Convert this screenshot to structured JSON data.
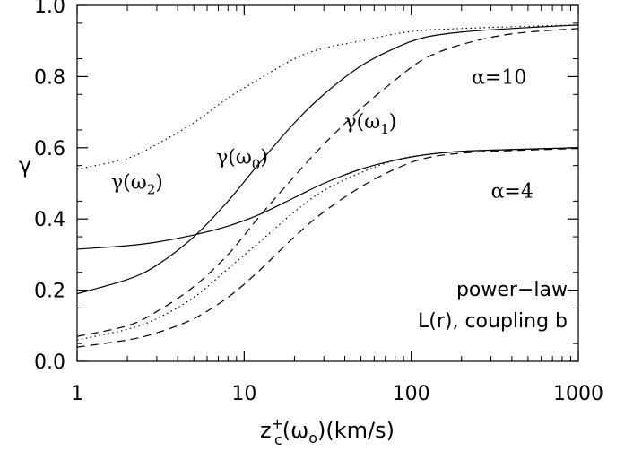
{
  "chart_data": {
    "type": "line",
    "xscale": "log",
    "xlim": [
      1,
      1000
    ],
    "ylim": [
      0.0,
      1.0
    ],
    "grid": false,
    "xticks": [
      1,
      10,
      100,
      1000
    ],
    "xtick_labels": [
      "1",
      "10",
      "100",
      "1000"
    ],
    "yticks": [
      0.0,
      0.2,
      0.4,
      0.6,
      0.8,
      1.0
    ],
    "ytick_labels": [
      "0.0",
      "0.2",
      "0.4",
      "0.6",
      "0.8",
      "1.0"
    ],
    "xlabel": {
      "base": "z",
      "sup": "+",
      "sub": "c",
      "rest_open": "(ω",
      "rest_sub": "o",
      "rest_close": ")(km/s)"
    },
    "ylabel": "γ",
    "series": [
      {
        "line_style": "solid",
        "group": "α=10",
        "x": [
          1,
          2,
          3,
          5,
          8,
          12,
          20,
          30,
          50,
          80,
          120,
          200,
          400,
          1000
        ],
        "y": [
          0.19,
          0.23,
          0.27,
          0.35,
          0.45,
          0.55,
          0.67,
          0.75,
          0.83,
          0.88,
          0.91,
          0.925,
          0.935,
          0.945
        ]
      },
      {
        "line_style": "dashed",
        "group": "α=10",
        "x": [
          1,
          2,
          3,
          5,
          8,
          12,
          20,
          30,
          50,
          80,
          120,
          200,
          400,
          1000
        ],
        "y": [
          0.07,
          0.1,
          0.14,
          0.21,
          0.3,
          0.4,
          0.52,
          0.61,
          0.71,
          0.79,
          0.85,
          0.89,
          0.92,
          0.935
        ]
      },
      {
        "line_style": "dotted",
        "group": "α=10",
        "x": [
          1,
          2,
          3,
          5,
          8,
          12,
          20,
          30,
          50,
          80,
          120,
          200,
          400,
          1000
        ],
        "y": [
          0.54,
          0.57,
          0.61,
          0.67,
          0.74,
          0.79,
          0.85,
          0.88,
          0.9,
          0.92,
          0.93,
          0.935,
          0.94,
          0.945
        ]
      },
      {
        "line_style": "solid",
        "group": "α=4",
        "x": [
          1,
          2,
          3,
          5,
          8,
          12,
          20,
          30,
          50,
          80,
          120,
          200,
          400,
          1000
        ],
        "y": [
          0.315,
          0.325,
          0.335,
          0.355,
          0.38,
          0.41,
          0.46,
          0.5,
          0.54,
          0.565,
          0.58,
          0.59,
          0.595,
          0.6
        ]
      },
      {
        "line_style": "dashed",
        "group": "α=4",
        "x": [
          1,
          2,
          3,
          5,
          8,
          12,
          20,
          30,
          50,
          80,
          120,
          200,
          400,
          1000
        ],
        "y": [
          0.04,
          0.06,
          0.08,
          0.12,
          0.18,
          0.25,
          0.35,
          0.42,
          0.49,
          0.54,
          0.57,
          0.585,
          0.592,
          0.598
        ]
      },
      {
        "line_style": "dotted",
        "group": "α=4",
        "x": [
          1,
          2,
          3,
          5,
          8,
          12,
          20,
          30,
          50,
          80,
          120,
          200,
          400,
          1000
        ],
        "y": [
          0.06,
          0.09,
          0.12,
          0.18,
          0.26,
          0.33,
          0.42,
          0.48,
          0.53,
          0.565,
          0.58,
          0.59,
          0.595,
          0.6
        ]
      }
    ],
    "annotations": {
      "gamma_w2": {
        "base": "γ(ω",
        "sub": "2",
        "close": ")",
        "x": 1.6,
        "y": 0.485
      },
      "gamma_w0": {
        "base": "γ(ω",
        "sub": "0",
        "close": ")",
        "x": 6.8,
        "y": 0.555
      },
      "gamma_w1": {
        "base": "γ(ω",
        "sub": "1",
        "close": ")",
        "x": 40,
        "y": 0.655
      },
      "alpha10": {
        "text": "α=10",
        "x": 230,
        "y": 0.8
      },
      "alpha4": {
        "text": "α=4",
        "x": 300,
        "y": 0.48
      }
    },
    "note_lines": [
      "power−law",
      "L(r), coupling b"
    ]
  }
}
